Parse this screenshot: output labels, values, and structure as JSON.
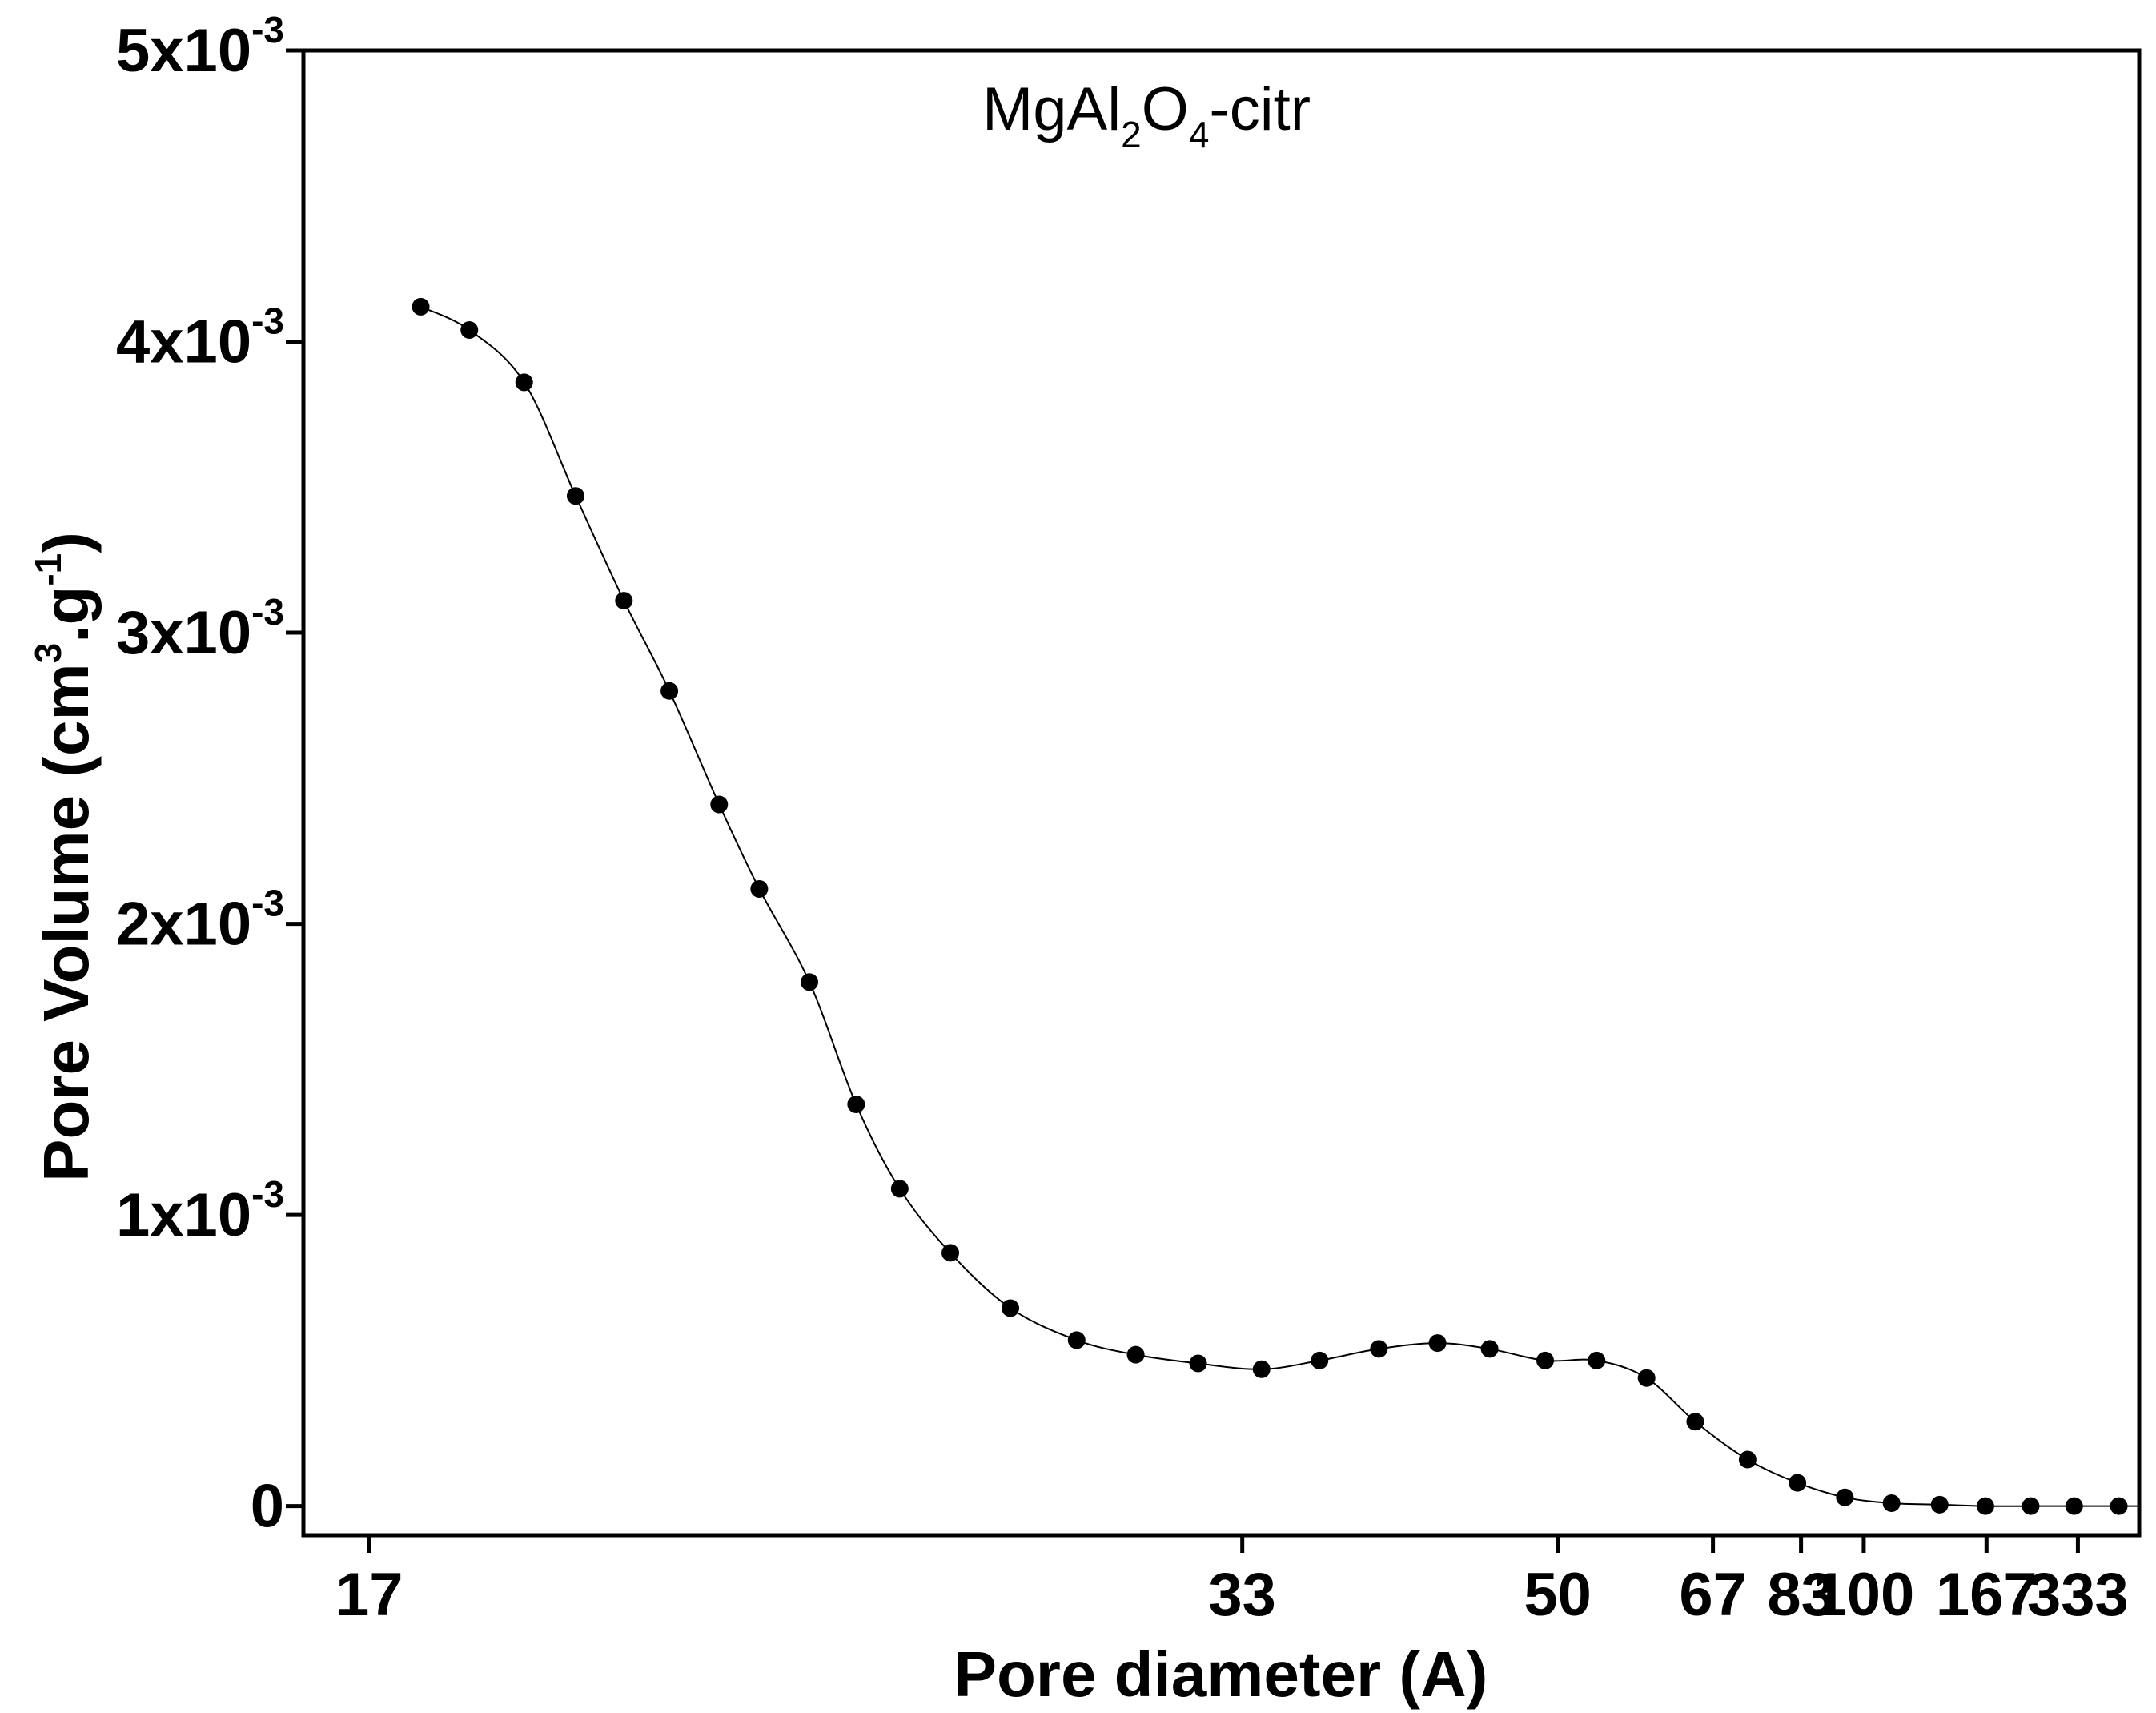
{
  "chart_data": {
    "type": "scatter",
    "annotation": {
      "prefix": "MgAl",
      "sub1": "2",
      "mid": "O",
      "sub2": "4",
      "suffix": "-citr"
    },
    "xlabel": "Pore diameter (A)",
    "ylabel": {
      "main": "Pore Volume (cm",
      "sup1": "3",
      "mid": ".g",
      "sup2": "-1",
      "end": ")"
    },
    "x_scale": "reciprocal",
    "xlim": [
      16.4,
      1000
    ],
    "ylim": [
      -0.0001,
      0.005
    ],
    "x_ticks": [
      {
        "value": 17,
        "label": "17"
      },
      {
        "value": 33,
        "label": "33"
      },
      {
        "value": 50,
        "label": "50"
      },
      {
        "value": 67,
        "label": "67"
      },
      {
        "value": 83,
        "label": "83"
      },
      {
        "value": 100,
        "label": "100"
      },
      {
        "value": 167,
        "label": "167"
      },
      {
        "value": 333,
        "label": "333"
      }
    ],
    "y_ticks": [
      {
        "value": 0,
        "label": "0",
        "sup": ""
      },
      {
        "value": 0.001,
        "label": "1x10",
        "sup": "-3"
      },
      {
        "value": 0.002,
        "label": "2x10",
        "sup": "-3"
      },
      {
        "value": 0.003,
        "label": "3x10",
        "sup": "-3"
      },
      {
        "value": 0.004,
        "label": "4x10",
        "sup": "-3"
      },
      {
        "value": 0.005,
        "label": "5x10",
        "sup": "-3"
      }
    ],
    "grid": false,
    "legend": "none",
    "series": [
      {
        "color": "#000000",
        "marker": "circle",
        "line": "smooth",
        "points": [
          {
            "x": 17.5,
            "y": 0.00412
          },
          {
            "x": 18.0,
            "y": 0.00404
          },
          {
            "x": 18.6,
            "y": 0.00386
          },
          {
            "x": 19.2,
            "y": 0.00347
          },
          {
            "x": 19.8,
            "y": 0.00311
          },
          {
            "x": 20.4,
            "y": 0.0028
          },
          {
            "x": 21.1,
            "y": 0.00241
          },
          {
            "x": 21.7,
            "y": 0.00212
          },
          {
            "x": 22.5,
            "y": 0.0018
          },
          {
            "x": 23.3,
            "y": 0.00138
          },
          {
            "x": 24.1,
            "y": 0.00109
          },
          {
            "x": 25.1,
            "y": 0.00087
          },
          {
            "x": 26.4,
            "y": 0.00068
          },
          {
            "x": 28.0,
            "y": 0.00057
          },
          {
            "x": 29.6,
            "y": 0.00052
          },
          {
            "x": 31.5,
            "y": 0.00049
          },
          {
            "x": 33.7,
            "y": 0.00047
          },
          {
            "x": 36.0,
            "y": 0.0005
          },
          {
            "x": 38.7,
            "y": 0.00054
          },
          {
            "x": 41.8,
            "y": 0.00056
          },
          {
            "x": 45.0,
            "y": 0.00054
          },
          {
            "x": 49.0,
            "y": 0.0005
          },
          {
            "x": 53.4,
            "y": 0.0005
          },
          {
            "x": 58.5,
            "y": 0.00044
          },
          {
            "x": 64.5,
            "y": 0.00029
          },
          {
            "x": 72.5,
            "y": 0.00016
          },
          {
            "x": 82.2,
            "y": 8e-05
          },
          {
            "x": 94.2,
            "y": 3e-05
          },
          {
            "x": 110,
            "y": 1e-05
          },
          {
            "x": 133,
            "y": 5e-06
          },
          {
            "x": 166,
            "y": 0.0
          },
          {
            "x": 220,
            "y": 0.0
          },
          {
            "x": 320,
            "y": 0.0
          },
          {
            "x": 600,
            "y": 0.0
          },
          {
            "x": 1000,
            "y": 0.0
          }
        ]
      }
    ]
  }
}
